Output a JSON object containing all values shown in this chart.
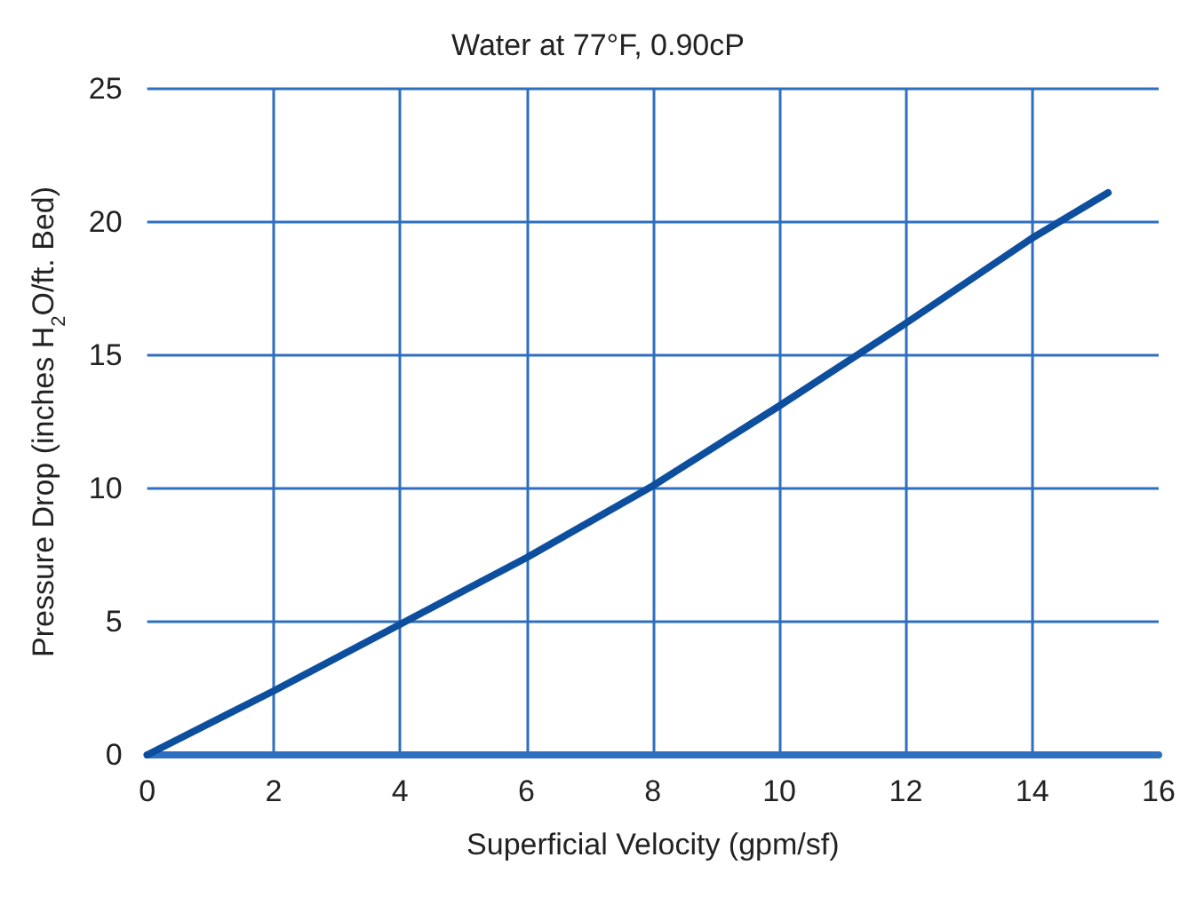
{
  "chart_data": {
    "type": "line",
    "title": "Water at 77°F, 0.90cP",
    "xlabel": "Superficial Velocity (gpm/sf)",
    "ylabel": "Pressure Drop (inches H$_{2}$O/ft. Bed)",
    "x": [
      0,
      2,
      4,
      6,
      8,
      10,
      12,
      14,
      15.2
    ],
    "series": [
      {
        "color": "#0d4f9e",
        "values": [
          0,
          2.4,
          4.9,
          7.4,
          10.1,
          13.1,
          16.2,
          19.4,
          21.1
        ]
      }
    ],
    "xlim": [
      0,
      16
    ],
    "xticks": [
      0,
      2,
      4,
      6,
      8,
      10,
      12,
      14,
      16
    ],
    "ylim": [
      0,
      25
    ],
    "yticks": [
      0,
      5,
      10,
      15,
      20,
      25
    ],
    "grid": true,
    "marker": "none",
    "line_style": "solid"
  }
}
